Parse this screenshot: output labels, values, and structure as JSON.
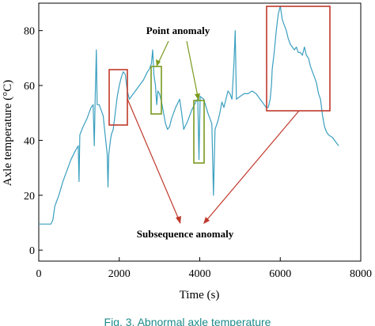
{
  "chart_data": {
    "type": "line",
    "xlabel": "Time (s)",
    "ylabel": "Axle temperature (°C)",
    "xlim": [
      0,
      8000
    ],
    "ylim": [
      -4,
      90
    ],
    "x_ticks": [
      "0",
      "2000",
      "4000",
      "6000",
      "8000"
    ],
    "y_ticks": [
      "0",
      "20",
      "40",
      "60",
      "80"
    ],
    "grid": false,
    "line_color": "#3a9fbf",
    "annotations": {
      "point_anomaly": "Point anomaly",
      "subsequence_anomaly": "Subsequence anomaly",
      "point_color": "#7a9a1e",
      "subsequence_color": "#c0392b"
    },
    "caption": "Fig. 3. Abnormal axle temperature",
    "series": [
      {
        "points": [
          [
            0,
            9.5
          ],
          [
            150,
            9.5
          ],
          [
            300,
            9.5
          ],
          [
            350,
            11
          ],
          [
            400,
            16
          ],
          [
            500,
            20
          ],
          [
            600,
            25
          ],
          [
            700,
            29
          ],
          [
            800,
            33
          ],
          [
            900,
            36
          ],
          [
            980,
            38
          ],
          [
            1000,
            25
          ],
          [
            1020,
            42
          ],
          [
            1100,
            45
          ],
          [
            1200,
            48
          ],
          [
            1300,
            52
          ],
          [
            1350,
            53
          ],
          [
            1380,
            38
          ],
          [
            1400,
            54
          ],
          [
            1430,
            73
          ],
          [
            1450,
            53
          ],
          [
            1500,
            53
          ],
          [
            1550,
            51
          ],
          [
            1600,
            49
          ],
          [
            1650,
            42
          ],
          [
            1700,
            35
          ],
          [
            1720,
            23
          ],
          [
            1740,
            35
          ],
          [
            1780,
            40
          ],
          [
            1800,
            42
          ],
          [
            1850,
            44
          ],
          [
            1900,
            50
          ],
          [
            1950,
            56
          ],
          [
            2000,
            60
          ],
          [
            2050,
            63
          ],
          [
            2100,
            65
          ],
          [
            2150,
            64
          ],
          [
            2200,
            58
          ],
          [
            2250,
            55
          ],
          [
            2300,
            56
          ],
          [
            2400,
            58
          ],
          [
            2500,
            60
          ],
          [
            2600,
            62
          ],
          [
            2700,
            65
          ],
          [
            2750,
            66
          ],
          [
            2800,
            68
          ],
          [
            2830,
            73
          ],
          [
            2860,
            64
          ],
          [
            2900,
            60
          ],
          [
            2930,
            53
          ],
          [
            2960,
            58
          ],
          [
            3000,
            57
          ],
          [
            3050,
            54
          ],
          [
            3100,
            50
          ],
          [
            3150,
            46
          ],
          [
            3200,
            44
          ],
          [
            3250,
            45
          ],
          [
            3300,
            48
          ],
          [
            3400,
            52
          ],
          [
            3500,
            55
          ],
          [
            3550,
            50
          ],
          [
            3600,
            44
          ],
          [
            3700,
            47
          ],
          [
            3800,
            51
          ],
          [
            3900,
            54
          ],
          [
            3950,
            55
          ],
          [
            3980,
            33
          ],
          [
            4010,
            56
          ],
          [
            4100,
            55
          ],
          [
            4200,
            50
          ],
          [
            4300,
            46
          ],
          [
            4340,
            20
          ],
          [
            4380,
            44
          ],
          [
            4450,
            47
          ],
          [
            4500,
            50
          ],
          [
            4550,
            54
          ],
          [
            4600,
            52
          ],
          [
            4650,
            55
          ],
          [
            4700,
            58
          ],
          [
            4750,
            57
          ],
          [
            4800,
            55
          ],
          [
            4850,
            68
          ],
          [
            4880,
            80
          ],
          [
            4910,
            55
          ],
          [
            5000,
            56
          ],
          [
            5100,
            57
          ],
          [
            5200,
            57
          ],
          [
            5300,
            58
          ],
          [
            5400,
            57
          ],
          [
            5500,
            55
          ],
          [
            5550,
            54
          ],
          [
            5600,
            53
          ],
          [
            5650,
            52
          ],
          [
            5700,
            52
          ],
          [
            5750,
            55
          ],
          [
            5780,
            60
          ],
          [
            5800,
            66
          ],
          [
            5850,
            72
          ],
          [
            5900,
            80
          ],
          [
            5950,
            86
          ],
          [
            6000,
            89
          ],
          [
            6050,
            84
          ],
          [
            6100,
            82
          ],
          [
            6150,
            80
          ],
          [
            6200,
            77
          ],
          [
            6250,
            75
          ],
          [
            6300,
            74
          ],
          [
            6350,
            73
          ],
          [
            6400,
            74
          ],
          [
            6450,
            72
          ],
          [
            6500,
            72
          ],
          [
            6550,
            71
          ],
          [
            6600,
            74
          ],
          [
            6650,
            71
          ],
          [
            6700,
            70
          ],
          [
            6750,
            67
          ],
          [
            6800,
            65
          ],
          [
            6850,
            63
          ],
          [
            6900,
            61
          ],
          [
            6950,
            57
          ],
          [
            7000,
            55
          ],
          [
            7050,
            49
          ],
          [
            7100,
            45
          ],
          [
            7150,
            43
          ],
          [
            7200,
            42
          ],
          [
            7300,
            41
          ],
          [
            7400,
            39
          ],
          [
            7450,
            38
          ]
        ]
      }
    ]
  }
}
